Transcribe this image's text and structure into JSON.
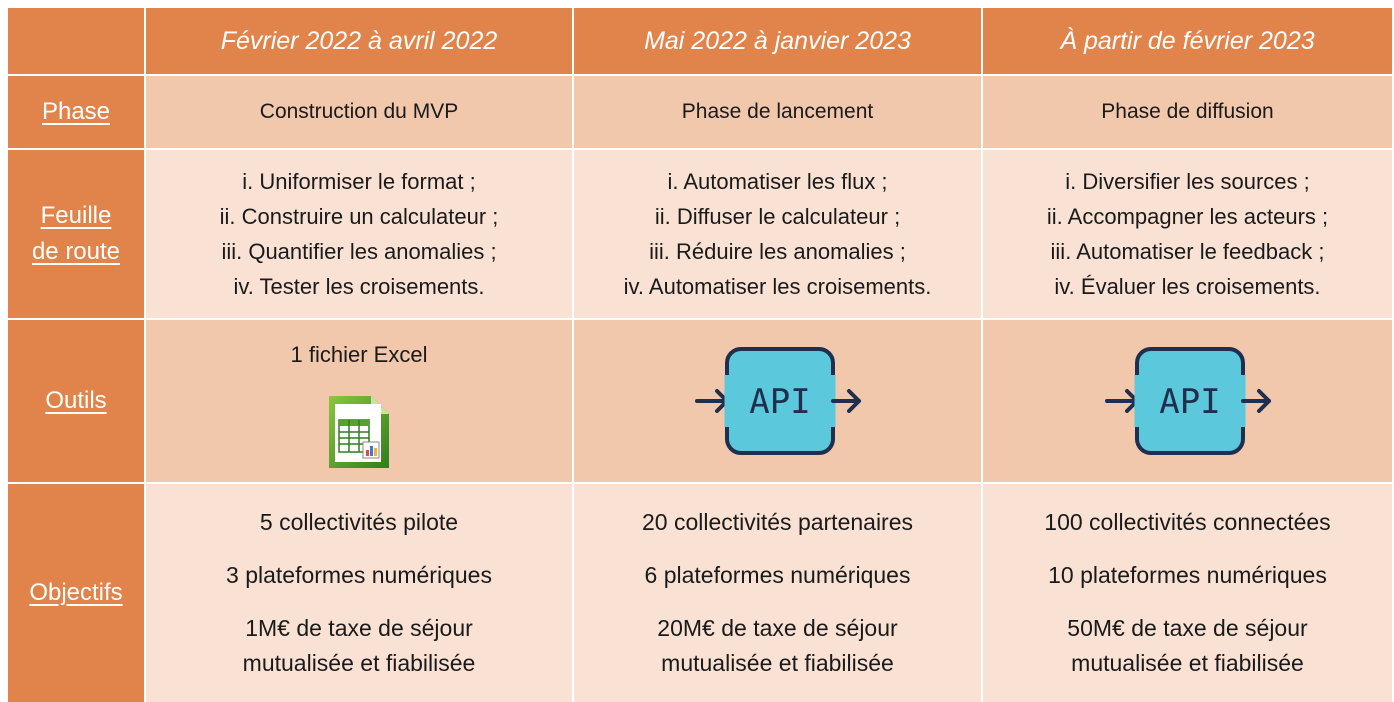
{
  "header": {
    "col1": "Février 2022 à avril 2022",
    "col2": "Mai 2022 à janvier 2023",
    "col3": "À partir de février 2023"
  },
  "rows": {
    "phase": {
      "label": "Phase",
      "values": [
        "Construction du MVP",
        "Phase de lancement",
        "Phase de diffusion"
      ]
    },
    "roadmap": {
      "label_line1": "Feuille",
      "label_line2": "de route",
      "col1": [
        "i. Uniformiser le format ;",
        "ii. Construire un calculateur ;",
        "iii. Quantifier les anomalies ;",
        "iv. Tester les croisements."
      ],
      "col2": [
        "i. Automatiser les flux ;",
        "ii. Diffuser le calculateur ;",
        "iii. Réduire les anomalies ;",
        "iv. Automatiser les croisements."
      ],
      "col3": [
        "i. Diversifier les sources ;",
        "ii. Accompagner les acteurs ;",
        "iii. Automatiser le feedback ;",
        "iv. Évaluer les croisements."
      ]
    },
    "tools": {
      "label": "Outils",
      "col1_text": "1 fichier Excel",
      "col1_icon": "spreadsheet-icon",
      "col2_icon": "api-icon",
      "col3_icon": "api-icon",
      "api_text": "API"
    },
    "objectives": {
      "label": "Objectifs",
      "col1": {
        "line1": "5 collectivités pilote",
        "line2": "3 plateformes numériques",
        "line3a": "1M€ de taxe de séjour",
        "line3b": "mutualisée et fiabilisée"
      },
      "col2": {
        "line1": "20 collectivités partenaires",
        "line2": "6 plateformes numériques",
        "line3a": "20M€ de taxe de séjour",
        "line3b": "mutualisée et fiabilisée"
      },
      "col3": {
        "line1": "100 collectivités connectées",
        "line2": "10 plateformes numériques",
        "line3a": "50M€ de taxe de séjour",
        "line3b": "mutualisée et fiabilisée"
      }
    }
  },
  "colors": {
    "header_orange": "#e0844b",
    "cell_dark": "#f2c8ad",
    "cell_light": "#f9e2d4",
    "api_fill": "#5bc8dc",
    "api_stroke": "#1f2f4d"
  }
}
